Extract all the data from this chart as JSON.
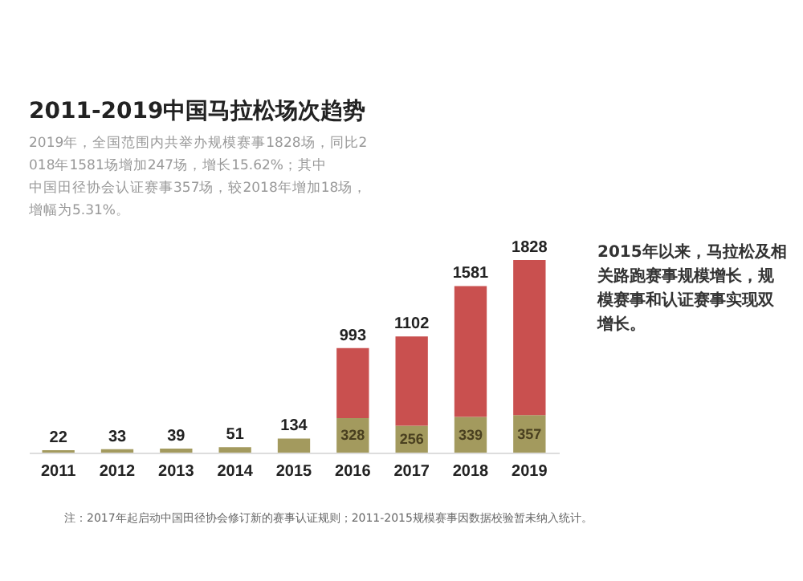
{
  "chart_data": {
    "type": "bar",
    "stacked": true,
    "title": "2011-2019中国马拉松场次趋势",
    "subtitle": "2019年，全国范围内共举办规模赛事1828场，同比2018年1581场增加247场，增长15.62%；其中中国田径协会认证赛事357场，较2018年增加18场，增幅为5.31%。",
    "categories": [
      "2011",
      "2012",
      "2013",
      "2014",
      "2015",
      "2016",
      "2017",
      "2018",
      "2019"
    ],
    "series": [
      {
        "color": "#a39a5e",
        "values": [
          22,
          33,
          39,
          51,
          134,
          328,
          256,
          339,
          357
        ],
        "value_labels": [
          null,
          null,
          null,
          null,
          null,
          "328",
          "256",
          "339",
          "357"
        ]
      },
      {
        "color": "#c9504f",
        "values": [
          null,
          null,
          null,
          null,
          null,
          665,
          846,
          1242,
          1471
        ]
      }
    ],
    "totals": [
      "22",
      "33",
      "39",
      "51",
      "134",
      "993",
      "1102",
      "1581",
      "1828"
    ],
    "annotations": [
      "2015年以来，马拉松及相关路跑赛事规模增长，规模赛事和认证赛事实现双增长。",
      "注：2017年起启动中国田径协会修订新的赛事认证规则；2011-2015规模赛事因数据校验暂未纳入统计。"
    ],
    "legend": false,
    "grid": false
  }
}
